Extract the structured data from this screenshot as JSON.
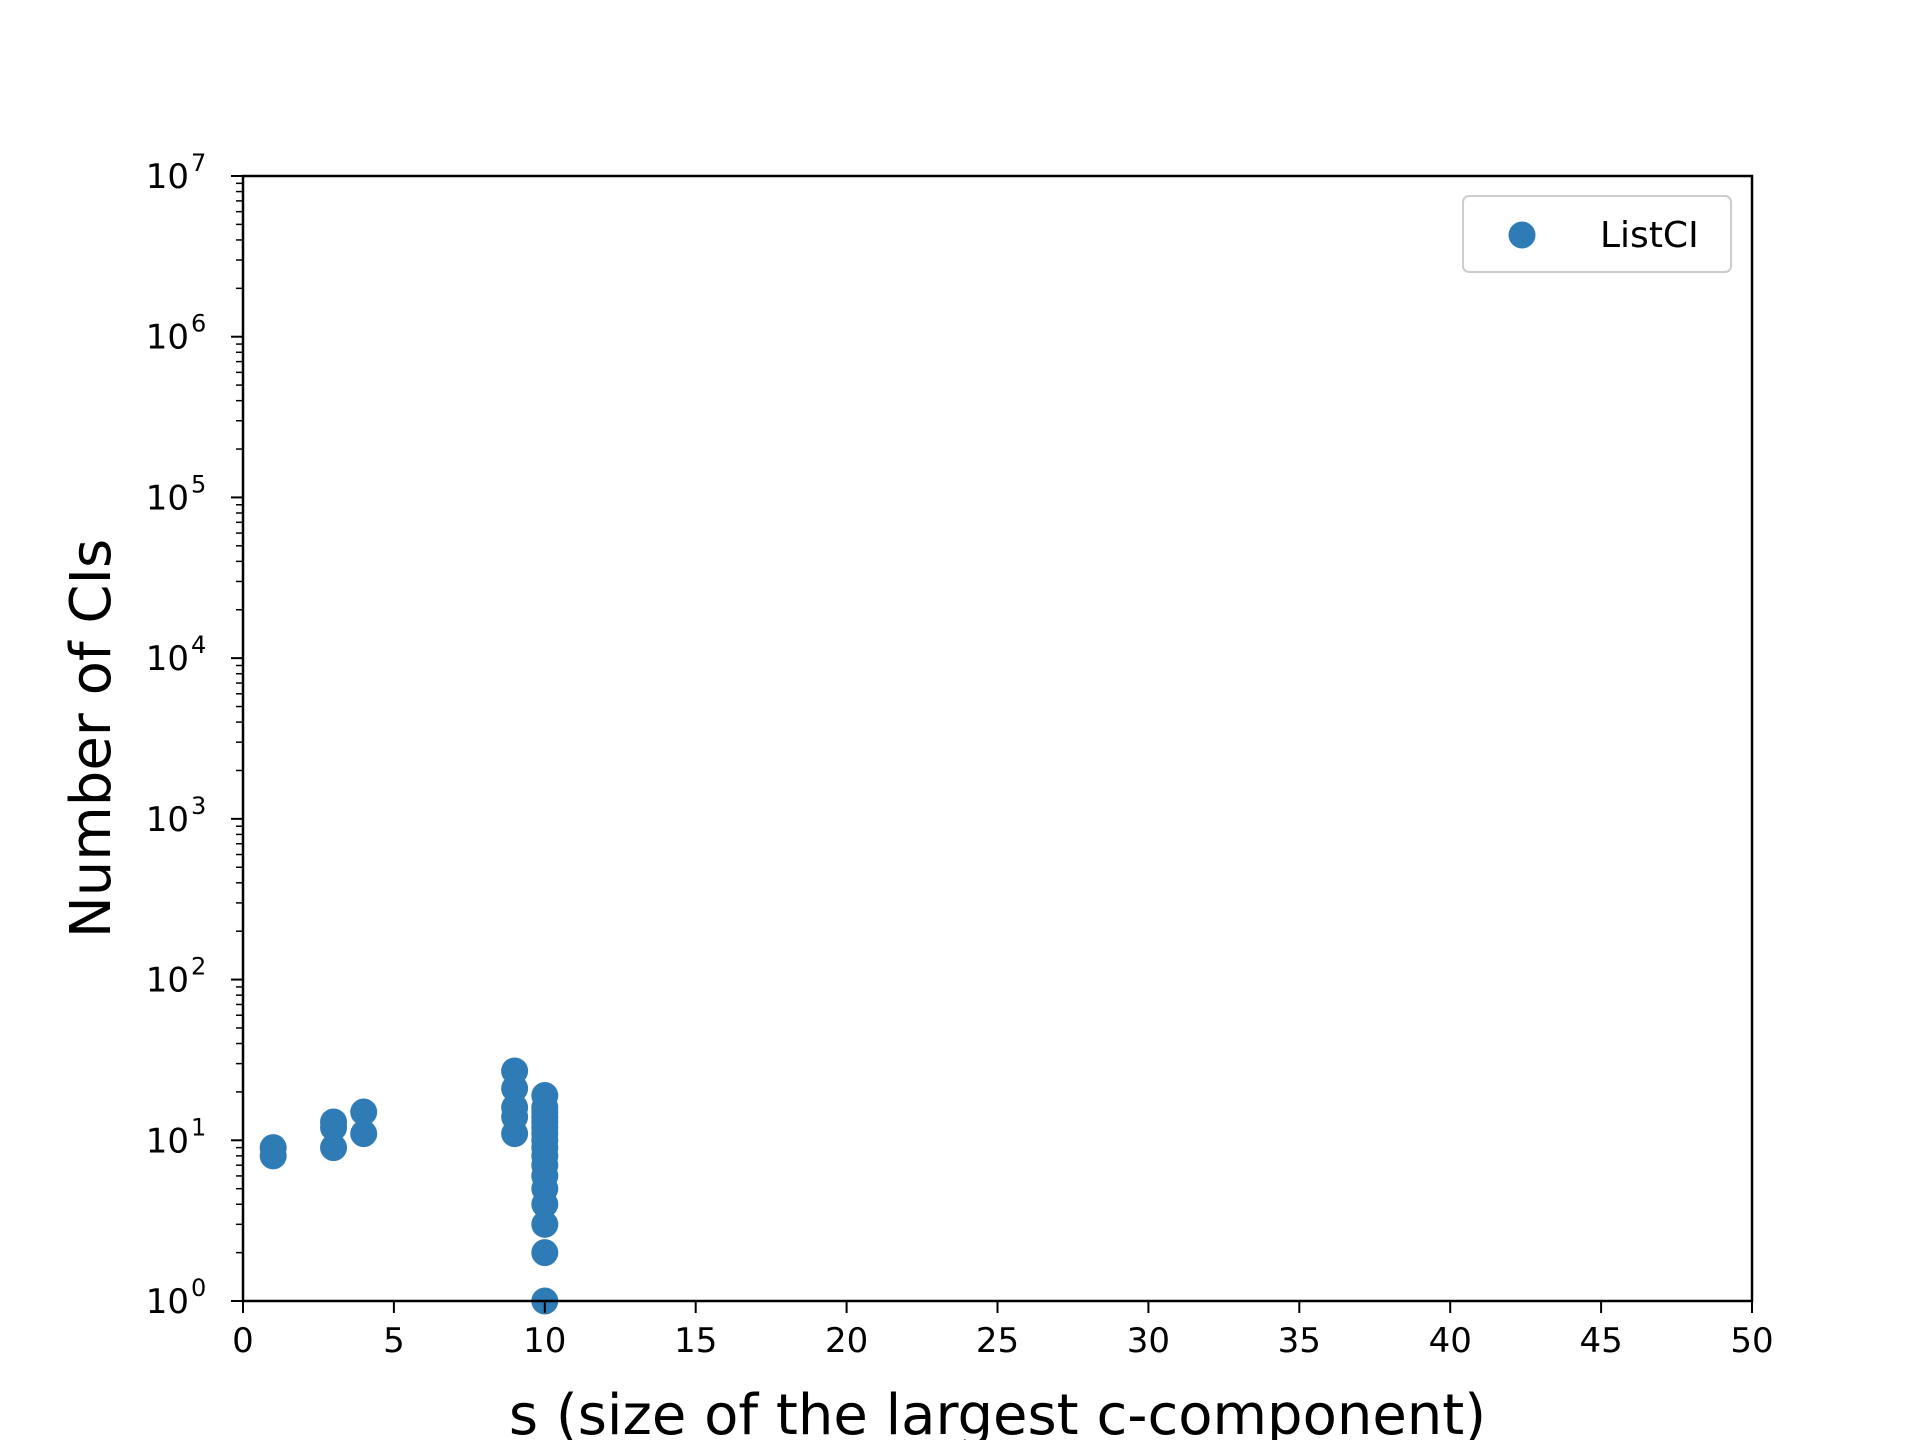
{
  "chart_data": {
    "type": "scatter",
    "xlabel": "s (size of the largest c-component)",
    "ylabel": "Number of CIs",
    "xlim": [
      0,
      50
    ],
    "ylim": [
      1,
      10000000
    ],
    "yscale": "log",
    "x_ticks": [
      0,
      5,
      10,
      15,
      20,
      25,
      30,
      35,
      40,
      45,
      50
    ],
    "x_tick_labels": [
      "0",
      "5",
      "10",
      "15",
      "20",
      "25",
      "30",
      "35",
      "40",
      "45",
      "50"
    ],
    "y_ticks": [
      1,
      10,
      100,
      1000,
      10000,
      100000,
      1000000,
      10000000
    ],
    "y_tick_labels": [
      {
        "base": "10",
        "exp": "0"
      },
      {
        "base": "10",
        "exp": "1"
      },
      {
        "base": "10",
        "exp": "2"
      },
      {
        "base": "10",
        "exp": "3"
      },
      {
        "base": "10",
        "exp": "4"
      },
      {
        "base": "10",
        "exp": "5"
      },
      {
        "base": "10",
        "exp": "6"
      },
      {
        "base": "10",
        "exp": "7"
      }
    ],
    "grid": false,
    "legend_position": "top-right",
    "series": [
      {
        "name": "ListCI",
        "color": "#2f7bb6",
        "points": [
          {
            "x": 1,
            "y": 8
          },
          {
            "x": 1,
            "y": 9
          },
          {
            "x": 3,
            "y": 9
          },
          {
            "x": 3,
            "y": 12
          },
          {
            "x": 3,
            "y": 13
          },
          {
            "x": 4,
            "y": 11
          },
          {
            "x": 4,
            "y": 15
          },
          {
            "x": 9,
            "y": 11
          },
          {
            "x": 9,
            "y": 14
          },
          {
            "x": 9,
            "y": 16
          },
          {
            "x": 9,
            "y": 21
          },
          {
            "x": 9,
            "y": 27
          },
          {
            "x": 10,
            "y": 1
          },
          {
            "x": 10,
            "y": 2
          },
          {
            "x": 10,
            "y": 3
          },
          {
            "x": 10,
            "y": 4
          },
          {
            "x": 10,
            "y": 5
          },
          {
            "x": 10,
            "y": 6
          },
          {
            "x": 10,
            "y": 7
          },
          {
            "x": 10,
            "y": 8
          },
          {
            "x": 10,
            "y": 9
          },
          {
            "x": 10,
            "y": 10
          },
          {
            "x": 10,
            "y": 11
          },
          {
            "x": 10,
            "y": 12
          },
          {
            "x": 10,
            "y": 13
          },
          {
            "x": 10,
            "y": 14
          },
          {
            "x": 10,
            "y": 15
          },
          {
            "x": 10,
            "y": 16
          },
          {
            "x": 10,
            "y": 19
          }
        ]
      }
    ]
  }
}
